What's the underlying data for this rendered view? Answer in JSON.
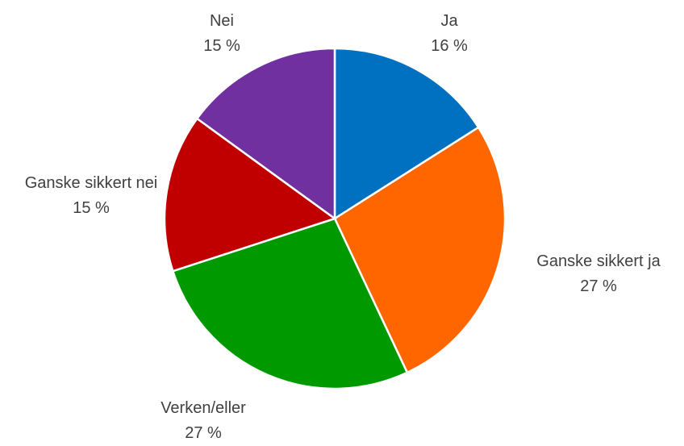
{
  "chart_data": {
    "type": "pie",
    "categories": [
      "Ja",
      "Ganske sikkert ja",
      "Verken/eller",
      "Ganske sikkert nei",
      "Nei"
    ],
    "values": [
      16,
      27,
      27,
      15,
      15
    ],
    "value_labels": [
      "16 %",
      "27 %",
      "27 %",
      "15 %",
      "15 %"
    ],
    "colors": [
      "#0070c0",
      "#ff6600",
      "#009900",
      "#c00000",
      "#7030a0"
    ]
  }
}
